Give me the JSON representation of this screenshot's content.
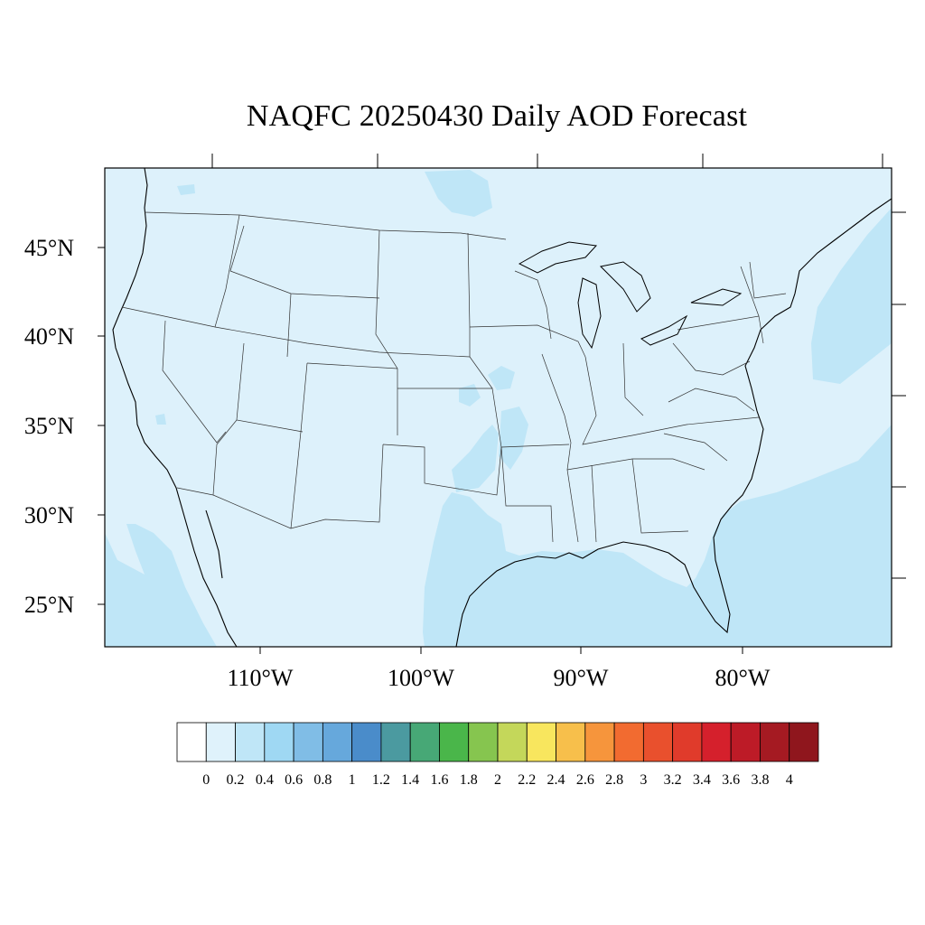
{
  "title": "NAQFC 20250430 Daily AOD Forecast",
  "map": {
    "projection": "lambert-conformal",
    "region": "Contiguous United States",
    "lat_labels": [
      "45°N",
      "40°N",
      "35°N",
      "30°N",
      "25°N"
    ],
    "lon_labels": [
      "110°W",
      "100°W",
      "90°W",
      "80°W"
    ],
    "ocean_fill_color": "#bfe6f7",
    "land_fill_color": "#ddf1fb",
    "field_summary": "AOD mostly in the 0–0.2 and 0.2–0.4 ranges; higher values (0.2–0.4) along coasts, Gulf of Mexico and the Atlantic"
  },
  "colorbar": {
    "labels": [
      "0",
      "0.2",
      "0.4",
      "0.6",
      "0.8",
      "1",
      "1.2",
      "1.4",
      "1.6",
      "1.8",
      "2",
      "2.2",
      "2.4",
      "2.6",
      "2.8",
      "3",
      "3.2",
      "3.4",
      "3.6",
      "3.8",
      "4"
    ],
    "colors": [
      "#ffffff",
      "#dff2fb",
      "#bfe6f7",
      "#9fd8f3",
      "#80bde6",
      "#66a8dc",
      "#4a8cca",
      "#4b9aa0",
      "#47a876",
      "#4ab64a",
      "#86c54f",
      "#c4d75a",
      "#f8e65e",
      "#f7bf4b",
      "#f6953c",
      "#f26b30",
      "#e9502d",
      "#e03b2b",
      "#d5202c",
      "#bd1b27",
      "#a51a22",
      "#8f161d"
    ]
  }
}
